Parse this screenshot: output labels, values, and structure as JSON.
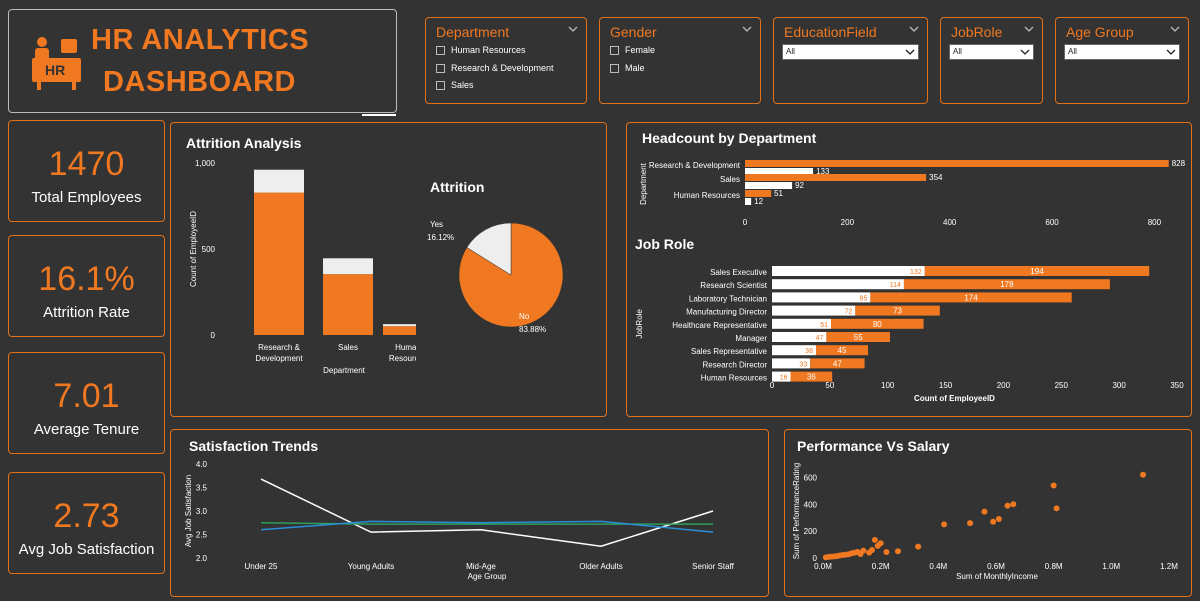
{
  "header": {
    "title_line1": "HR ANALYTICS",
    "title_line2": "DASHBOARD",
    "logo_text": "HR"
  },
  "slicers": {
    "department": {
      "title": "Department",
      "options": [
        "Human Resources",
        "Research & Development",
        "Sales"
      ]
    },
    "gender": {
      "title": "Gender",
      "options": [
        "Female",
        "Male"
      ]
    },
    "education": {
      "title": "EducationField",
      "value": "All"
    },
    "jobrole": {
      "title": "JobRole",
      "value": "All"
    },
    "agegroup": {
      "title": "Age Group",
      "value": "All"
    }
  },
  "kpis": [
    {
      "value": "1470",
      "label": "Total Employees"
    },
    {
      "value": "16.1%",
      "label": "Attrition Rate"
    },
    {
      "value": "7.01",
      "label": "Average Tenure"
    },
    {
      "value": "2.73",
      "label": "Avg Job Satisfaction"
    }
  ],
  "colors": {
    "accent": "#f07820",
    "bg": "#333333",
    "white": "#ffffff",
    "green": "#2e9e58",
    "blue": "#2a8fd8"
  },
  "chart_data": [
    {
      "type": "bar",
      "title": "Attrition Analysis",
      "xlabel": "Department",
      "ylabel": "Count of EmployeeID",
      "categories": [
        "Research & Development",
        "Sales",
        "Human Resources"
      ],
      "category_lines": [
        [
          "Research &",
          "Development"
        ],
        [
          "Sales"
        ],
        [
          "Human",
          "Resources"
        ]
      ],
      "ylim": [
        0,
        1000
      ],
      "yticks": [
        "0",
        "500",
        "1,000"
      ],
      "series": [
        {
          "values": [
            828,
            354,
            51
          ]
        },
        {
          "values": [
            133,
            92,
            12
          ]
        }
      ]
    },
    {
      "type": "pie",
      "title": "Attrition",
      "labels": [
        "No",
        "Yes"
      ],
      "values": [
        83.88,
        16.12
      ],
      "label_text": [
        "No\n83.88%",
        "Yes\n16.12%"
      ]
    },
    {
      "type": "bar",
      "title": "Headcount by Department",
      "ylabel": "Department",
      "categories": [
        "Research & Development",
        "Sales",
        "Human Resources"
      ],
      "xlim": [
        0,
        850
      ],
      "xticks": [
        "0",
        "200",
        "400",
        "600",
        "800"
      ],
      "series": [
        {
          "values": [
            828,
            354,
            51
          ]
        },
        {
          "values": [
            133,
            92,
            12
          ]
        }
      ]
    },
    {
      "type": "bar",
      "title": "Job Role",
      "xlabel": "Count of EmployeeID",
      "ylabel": "JobRole",
      "categories": [
        "Sales Executive",
        "Research Scientist",
        "Laboratory Technician",
        "Manufacturing Director",
        "Healthcare Representative",
        "Manager",
        "Sales Representative",
        "Research Director",
        "Human Resources"
      ],
      "xlim": [
        0,
        350
      ],
      "xticks": [
        "0",
        "50",
        "100",
        "150",
        "200",
        "250",
        "300",
        "350"
      ],
      "series": [
        {
          "values": [
            132,
            114,
            85,
            72,
            51,
            47,
            38,
            33,
            16
          ]
        },
        {
          "values": [
            194,
            178,
            174,
            73,
            80,
            55,
            45,
            47,
            36
          ]
        }
      ]
    },
    {
      "type": "line",
      "title": "Satisfaction Trends",
      "xlabel": "Age Group",
      "ylabel": "Avg Job Satisfaction",
      "categories": [
        "Under 25",
        "Young Adults",
        "Mid-Age",
        "Older Adults",
        "Senior Staff"
      ],
      "ylim": [
        2.0,
        4.0
      ],
      "yticks": [
        "2.0",
        "2.5",
        "3.0",
        "3.5",
        "4.0"
      ],
      "series": [
        {
          "color": "#ffffff",
          "values": [
            3.68,
            2.55,
            2.6,
            2.25,
            3.0
          ]
        },
        {
          "color": "#2e9e58",
          "values": [
            2.75,
            2.72,
            2.72,
            2.72,
            2.72
          ]
        },
        {
          "color": "#2a8fd8",
          "values": [
            2.6,
            2.78,
            2.75,
            2.78,
            2.55
          ]
        }
      ]
    },
    {
      "type": "scatter",
      "title": "Performance Vs Salary",
      "xlabel": "Sum of MonthlyIncome",
      "ylabel": "Sum of PerformanceRating",
      "xlim": [
        0,
        1200000
      ],
      "ylim": [
        0,
        700
      ],
      "xticks": [
        "0.0M",
        "0.2M",
        "0.4M",
        "0.6M",
        "0.8M",
        "1.0M",
        "1.2M"
      ],
      "yticks": [
        "0",
        "200",
        "400",
        "600"
      ],
      "points": [
        [
          10000,
          5
        ],
        [
          20000,
          8
        ],
        [
          30000,
          10
        ],
        [
          40000,
          12
        ],
        [
          50000,
          15
        ],
        [
          60000,
          20
        ],
        [
          70000,
          22
        ],
        [
          80000,
          25
        ],
        [
          90000,
          28
        ],
        [
          100000,
          35
        ],
        [
          110000,
          40
        ],
        [
          120000,
          45
        ],
        [
          130000,
          30
        ],
        [
          140000,
          55
        ],
        [
          160000,
          40
        ],
        [
          170000,
          60
        ],
        [
          180000,
          135
        ],
        [
          190000,
          90
        ],
        [
          200000,
          110
        ],
        [
          220000,
          45
        ],
        [
          260000,
          50
        ],
        [
          330000,
          85
        ],
        [
          420000,
          250
        ],
        [
          510000,
          260
        ],
        [
          560000,
          345
        ],
        [
          590000,
          270
        ],
        [
          610000,
          290
        ],
        [
          640000,
          390
        ],
        [
          660000,
          400
        ],
        [
          800000,
          540
        ],
        [
          810000,
          370
        ],
        [
          1110000,
          620
        ]
      ]
    }
  ]
}
